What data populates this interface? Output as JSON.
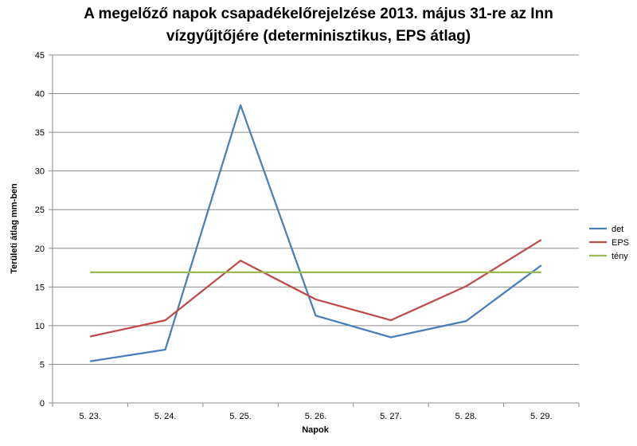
{
  "chart_data": {
    "type": "line",
    "title_line1": "A megelőző napok csapadékelőrejelzése 2013. május 31-re az Inn",
    "title_line2": "vízgyűjtőjére (determinisztikus, EPS átlag)",
    "xlabel": "Napok",
    "ylabel": "Területi átlag mm-ben",
    "categories": [
      "5. 23.",
      "5. 24.",
      "5. 25.",
      "5. 26.",
      "5. 27.",
      "5. 28.",
      "5. 29."
    ],
    "ylim": [
      0,
      45
    ],
    "ytick_step": 5,
    "grid": true,
    "legend_position": "right",
    "series": [
      {
        "name": "det",
        "color": "#4a7ebb",
        "values": [
          5.4,
          6.9,
          38.5,
          11.3,
          8.5,
          10.6,
          17.8
        ]
      },
      {
        "name": "EPS",
        "color": "#be4b48",
        "values": [
          8.6,
          10.7,
          18.4,
          13.4,
          10.7,
          15.1,
          21.1
        ]
      },
      {
        "name": "tény",
        "color": "#98b954",
        "values": [
          16.9,
          16.9,
          16.9,
          16.9,
          16.9,
          16.9,
          16.9
        ]
      }
    ]
  }
}
